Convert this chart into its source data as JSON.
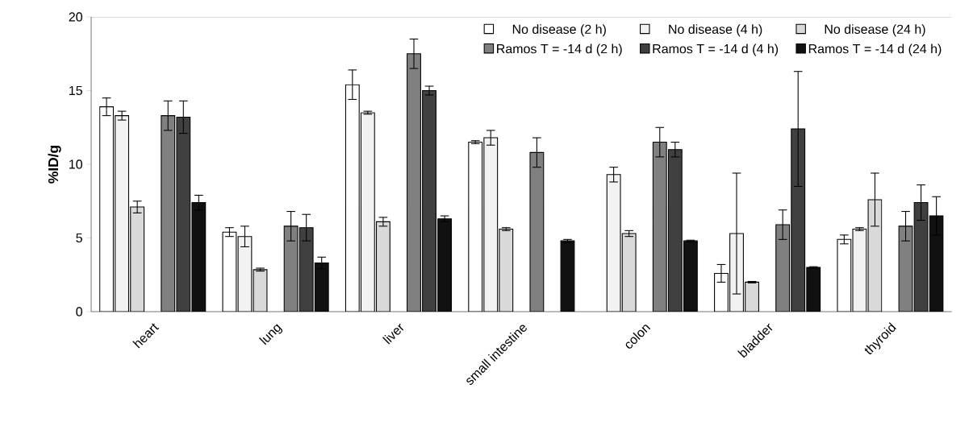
{
  "chart_data": {
    "type": "bar",
    "ylabel": "%ID/g",
    "categories": [
      "heart",
      "lung",
      "liver",
      "small intestine",
      "colon",
      "bladder",
      "thyroid"
    ],
    "ylim": [
      0,
      20
    ],
    "yticks": [
      0,
      5,
      10,
      15,
      20
    ],
    "grid": false,
    "legend": "top right",
    "series": [
      {
        "name": "No disease (2 h)",
        "color": "#ffffff",
        "values": [
          13.9,
          5.4,
          15.4,
          11.5,
          null,
          2.6,
          4.9
        ],
        "errors": [
          0.6,
          0.3,
          1.0,
          0.1,
          null,
          0.6,
          0.3
        ]
      },
      {
        "name": "No disease (4 h)",
        "color": "#f2f2f2",
        "values": [
          13.3,
          5.1,
          13.5,
          11.8,
          9.3,
          5.3,
          5.6
        ],
        "errors": [
          0.3,
          0.7,
          0.1,
          0.5,
          0.5,
          4.1,
          0.1
        ]
      },
      {
        "name": "No disease (24 h)",
        "color": "#d9d9d9",
        "values": [
          7.1,
          2.85,
          6.1,
          5.6,
          5.3,
          2.0,
          7.6
        ],
        "errors": [
          0.4,
          0.1,
          0.3,
          0.1,
          0.2,
          0.05,
          1.8
        ]
      },
      {
        "name": "Ramos T = -14 d (2 h)",
        "color": "#808080",
        "values": [
          13.3,
          5.8,
          17.5,
          10.8,
          11.5,
          5.9,
          5.8
        ],
        "errors": [
          1.0,
          1.0,
          1.0,
          1.0,
          1.0,
          1.0,
          1.0
        ]
      },
      {
        "name": "Ramos T = -14 d (4 h)",
        "color": "#404040",
        "values": [
          13.2,
          5.7,
          15.0,
          null,
          11.0,
          12.4,
          7.4
        ],
        "errors": [
          1.1,
          0.9,
          0.3,
          null,
          0.5,
          3.9,
          1.2
        ]
      },
      {
        "name": "Ramos T = -14 d (24 h)",
        "color": "#111111",
        "values": [
          7.4,
          3.3,
          6.3,
          4.8,
          4.8,
          3.0,
          6.5
        ],
        "errors": [
          0.5,
          0.4,
          0.2,
          0.1,
          0.05,
          0.05,
          1.3
        ]
      }
    ]
  }
}
